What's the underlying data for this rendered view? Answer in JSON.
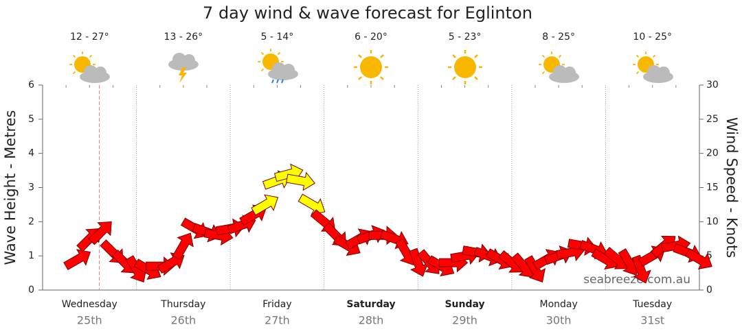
{
  "chart_data": {
    "type": "wind-arrows",
    "title": "7 day wind & wave forecast for Eglinton",
    "ylabel": "Wave Height - Metres",
    "y2label": "Wind Speed - Knots",
    "watermark": "seabreeze.com.au",
    "categories": [
      "Wednesday",
      "Thursday",
      "Friday",
      "Saturday",
      "Sunday",
      "Monday",
      "Tuesday"
    ],
    "dates": [
      "25th",
      "26th",
      "27th",
      "28th",
      "29th",
      "30th",
      "31st"
    ],
    "bold": [
      false,
      false,
      false,
      true,
      true,
      false,
      false
    ],
    "forecast": [
      "12 - 27°",
      "13 - 26°",
      "5 - 14°",
      "6 - 20°",
      "5 - 23°",
      "8 - 25°",
      "10 - 25°"
    ],
    "now": 14.5,
    "xlim": [
      0,
      168
    ],
    "ylim": [
      0,
      6
    ],
    "yticks": [
      0,
      1,
      2,
      3,
      4,
      5,
      6
    ],
    "y2lim": [
      0,
      30
    ],
    "y2ticks": [
      0,
      5,
      10,
      15,
      20,
      25,
      30
    ],
    "x": [
      9,
      12,
      15,
      18,
      21,
      24,
      27,
      30,
      33,
      36,
      39,
      42,
      45,
      48,
      51,
      54,
      57,
      60,
      63,
      66,
      69,
      72,
      75,
      78,
      81,
      84,
      87,
      90,
      93,
      96,
      99,
      102,
      105,
      108,
      111,
      114,
      117,
      120,
      123,
      126,
      129,
      132,
      135,
      138,
      141,
      144,
      147,
      150,
      153,
      156,
      159,
      162,
      165,
      168
    ],
    "series": [
      {
        "axis": "y2",
        "values": [
          4.5,
          7.5,
          8.5,
          5.5,
          4,
          3,
          3,
          3.5,
          4,
          6.5,
          9,
          8.5,
          8,
          9,
          9.5,
          11,
          12.5,
          16,
          17,
          16,
          12.5,
          10,
          8,
          6.5,
          7.5,
          8,
          8,
          7.5,
          5.5,
          4,
          4,
          3.5,
          4,
          5,
          5.5,
          5,
          4.5,
          4,
          3.5,
          3,
          4.5,
          5,
          5.5,
          6.5,
          6,
          4.5,
          4.5,
          4,
          3,
          5,
          6.5,
          6.5,
          5.5,
          4.5
        ],
        "directions": [
          60,
          45,
          45,
          135,
          135,
          150,
          120,
          90,
          60,
          30,
          120,
          110,
          100,
          80,
          70,
          60,
          60,
          70,
          75,
          100,
          120,
          130,
          135,
          120,
          60,
          70,
          90,
          110,
          150,
          160,
          140,
          120,
          90,
          80,
          100,
          110,
          120,
          130,
          140,
          150,
          60,
          70,
          80,
          100,
          110,
          120,
          130,
          150,
          160,
          60,
          50,
          80,
          110,
          120
        ],
        "colors": [
          "#ff0000",
          "#ff0000",
          "#ff0000",
          "#ff0000",
          "#ff0000",
          "#ff0000",
          "#ff0000",
          "#ff0000",
          "#ff0000",
          "#ff0000",
          "#ff0000",
          "#ff0000",
          "#ff0000",
          "#ff0000",
          "#ff0000",
          "#ff0000",
          "#ffff00",
          "#ffff00",
          "#ffff00",
          "#ffff00",
          "#ffff00",
          "#ff0000",
          "#ff0000",
          "#ff0000",
          "#ff0000",
          "#ff0000",
          "#ff0000",
          "#ff0000",
          "#ff0000",
          "#ff0000",
          "#ff0000",
          "#ff0000",
          "#ff0000",
          "#ff0000",
          "#ff0000",
          "#ff0000",
          "#ff0000",
          "#ff0000",
          "#ff0000",
          "#ff0000",
          "#ff0000",
          "#ff0000",
          "#ff0000",
          "#ff0000",
          "#ff0000",
          "#ff0000",
          "#ff0000",
          "#ff0000",
          "#ff0000",
          "#ff0000",
          "#ff0000",
          "#ff0000",
          "#ff0000",
          "#ff0000"
        ]
      }
    ]
  }
}
